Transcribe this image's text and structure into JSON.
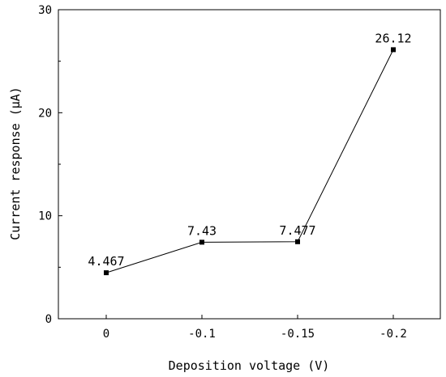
{
  "chart_data": {
    "type": "line",
    "categories": [
      "0",
      "-0.1",
      "-0.15",
      "-0.2"
    ],
    "series": [
      {
        "values": [
          4.467,
          7.43,
          7.477,
          26.12
        ]
      }
    ],
    "data_labels": [
      "4.467",
      "7.43",
      "7.477",
      "26.12"
    ],
    "xlabel": "Deposition voltage (V)",
    "ylabel": "Current response (μA)",
    "ylim": [
      0,
      30
    ],
    "yticks": [
      "0",
      "10",
      "20",
      "30"
    ],
    "grid": false,
    "legend": false,
    "colors": {
      "line": "#000000",
      "marker": "#000000"
    }
  }
}
